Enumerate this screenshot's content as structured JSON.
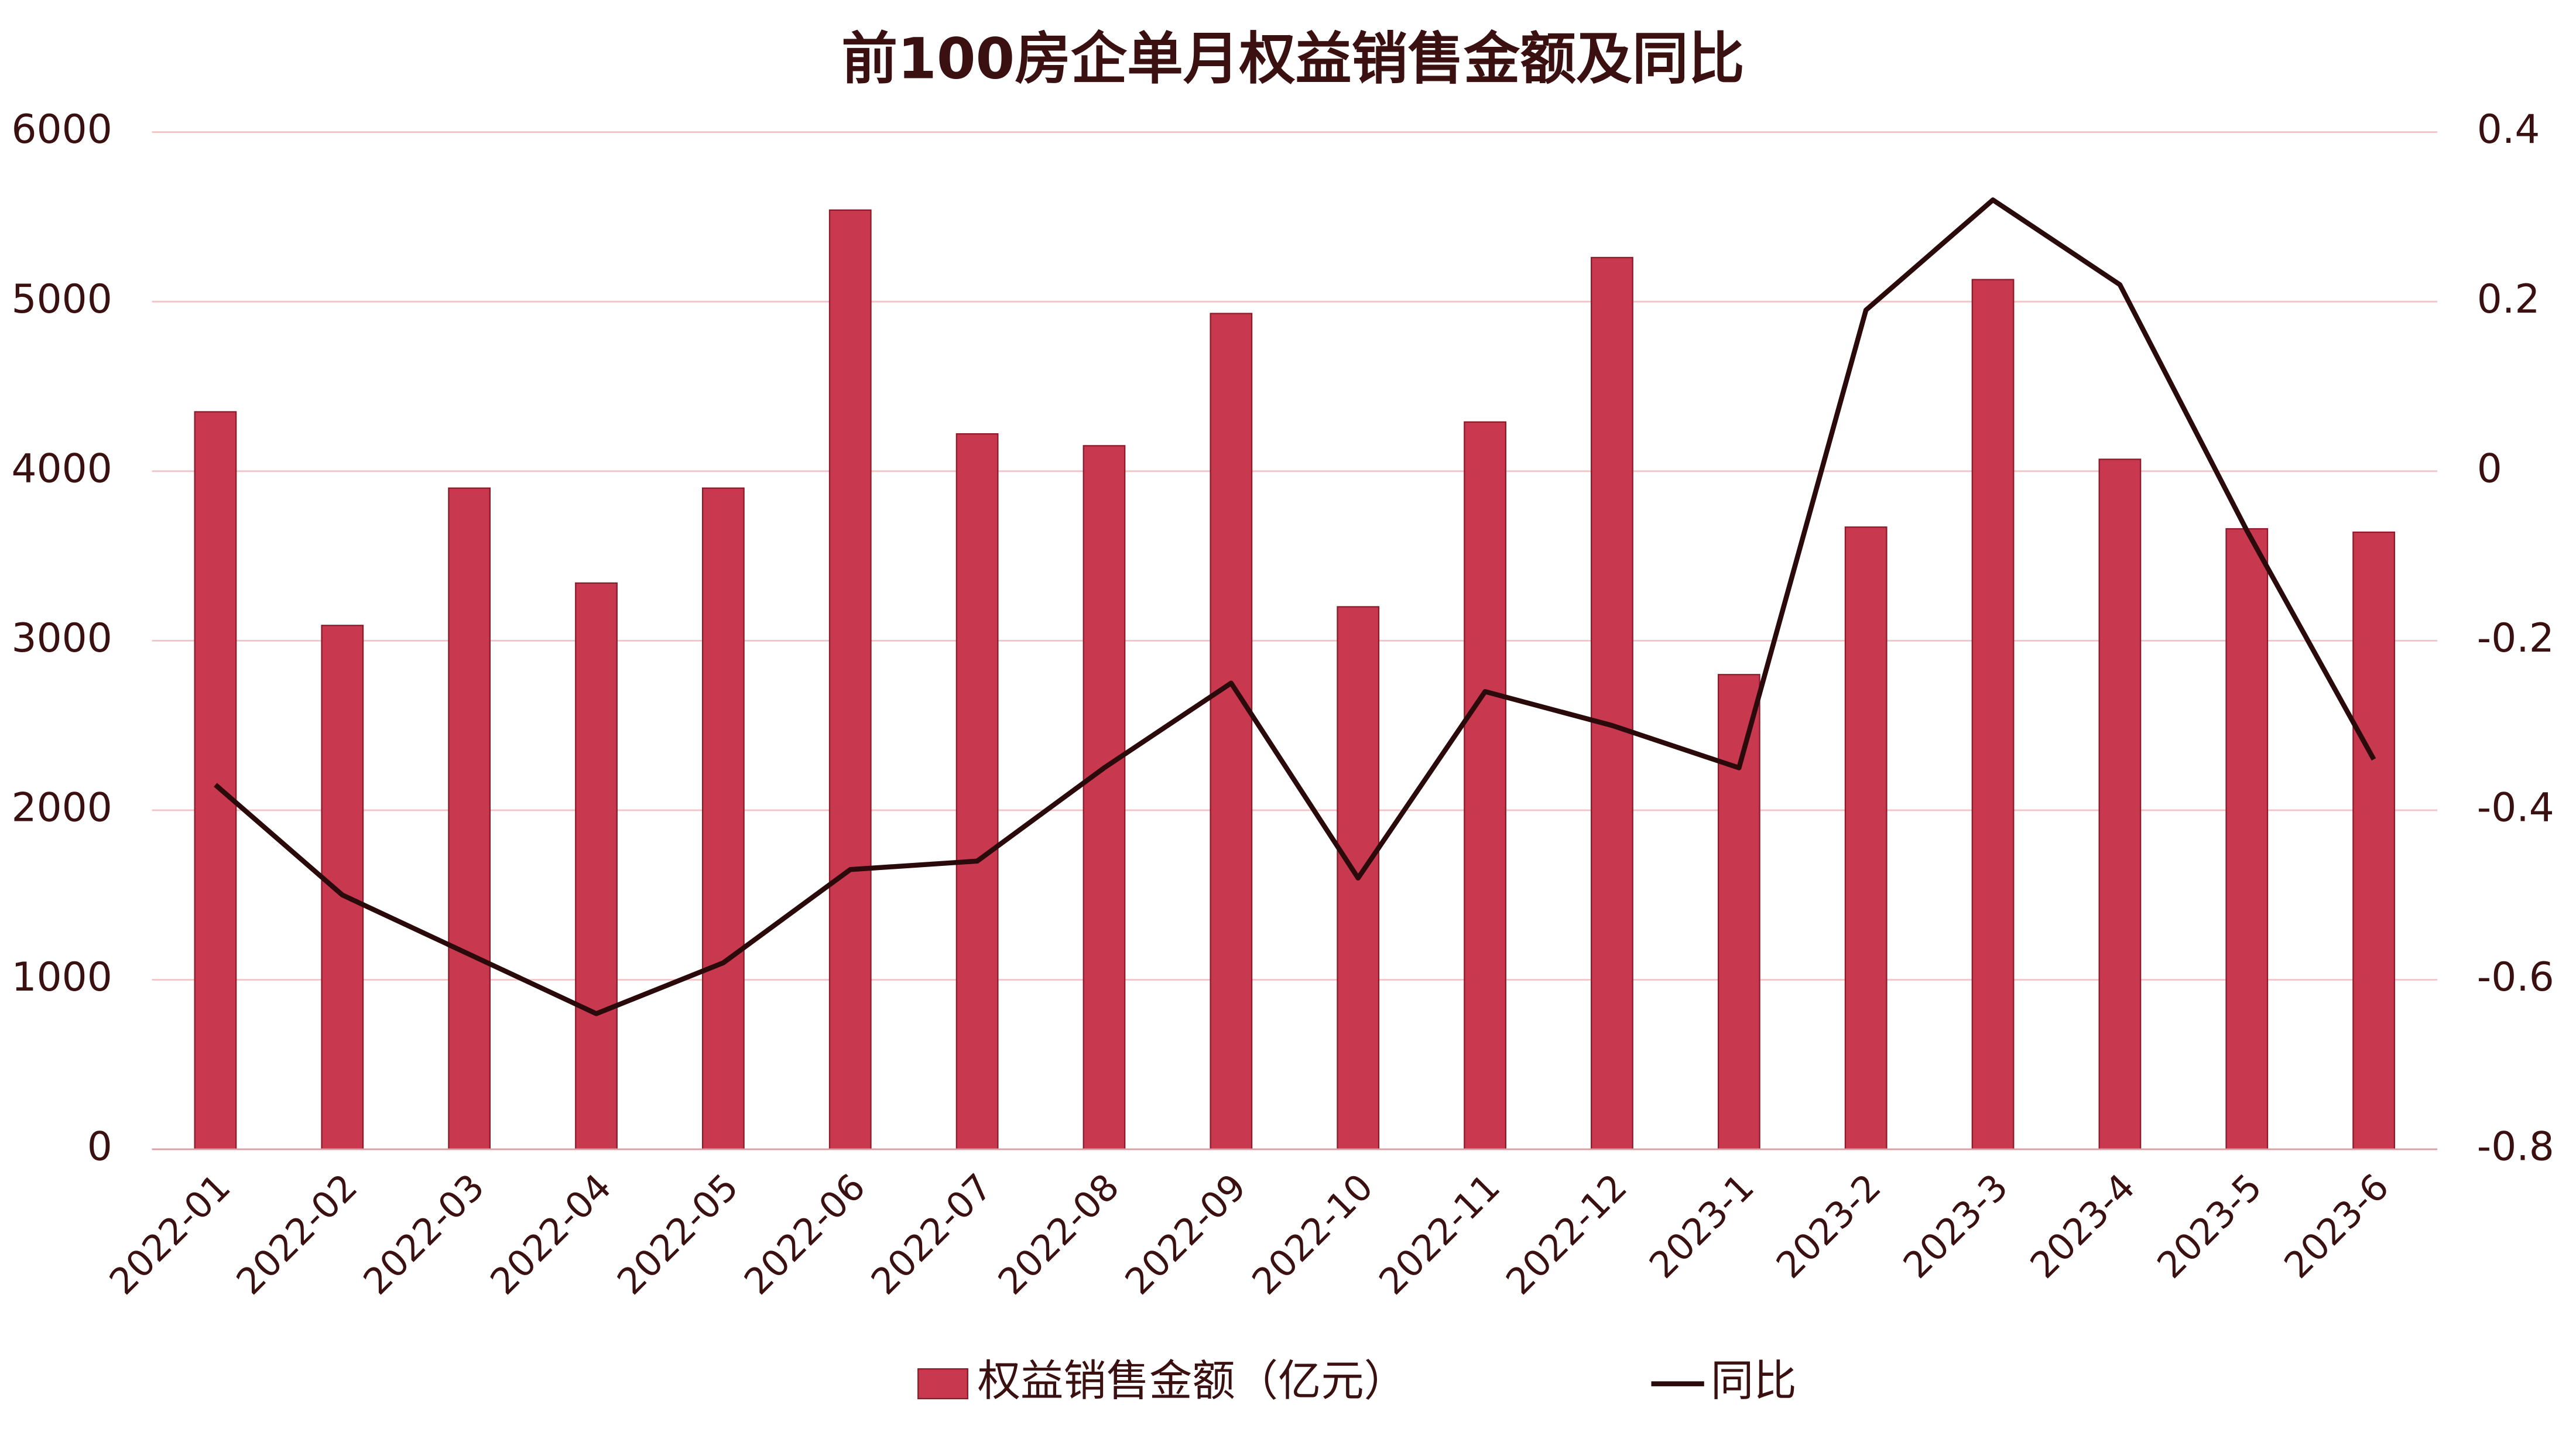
{
  "chart_data": {
    "type": "bar-line",
    "title": "前100房企单月权益销售金额及同比",
    "categories": [
      "2022-01",
      "2022-02",
      "2022-03",
      "2022-04",
      "2022-05",
      "2022-06",
      "2022-07",
      "2022-08",
      "2022-09",
      "2022-10",
      "2022-11",
      "2022-12",
      "2023-1",
      "2023-2",
      "2023-3",
      "2023-4",
      "2023-5",
      "2023-6"
    ],
    "series": [
      {
        "name": "权益销售金额（亿元）",
        "type": "bar",
        "color": "#c8394f",
        "values": [
          4350,
          3090,
          3900,
          3340,
          3900,
          5540,
          4220,
          4150,
          4930,
          3200,
          4290,
          5260,
          2800,
          3670,
          5130,
          4070,
          3660,
          3640
        ]
      },
      {
        "name": "同比",
        "type": "line",
        "axis": "y2",
        "color": "#2a0a0a",
        "values": [
          -0.37,
          -0.5,
          -0.57,
          -0.64,
          -0.58,
          -0.47,
          -0.46,
          -0.35,
          -0.25,
          -0.48,
          -0.26,
          -0.3,
          -0.35,
          0.19,
          0.32,
          0.22,
          -0.07,
          -0.34
        ]
      }
    ],
    "ylim": [
      0,
      6000
    ],
    "yticks": [
      0,
      1000,
      2000,
      3000,
      4000,
      5000,
      6000
    ],
    "y2lim": [
      -0.8,
      0.4
    ],
    "y2ticks": [
      -0.8,
      -0.6,
      -0.4,
      -0.2,
      0,
      0.2,
      0.4
    ],
    "grid": true,
    "legend": "bottom"
  }
}
